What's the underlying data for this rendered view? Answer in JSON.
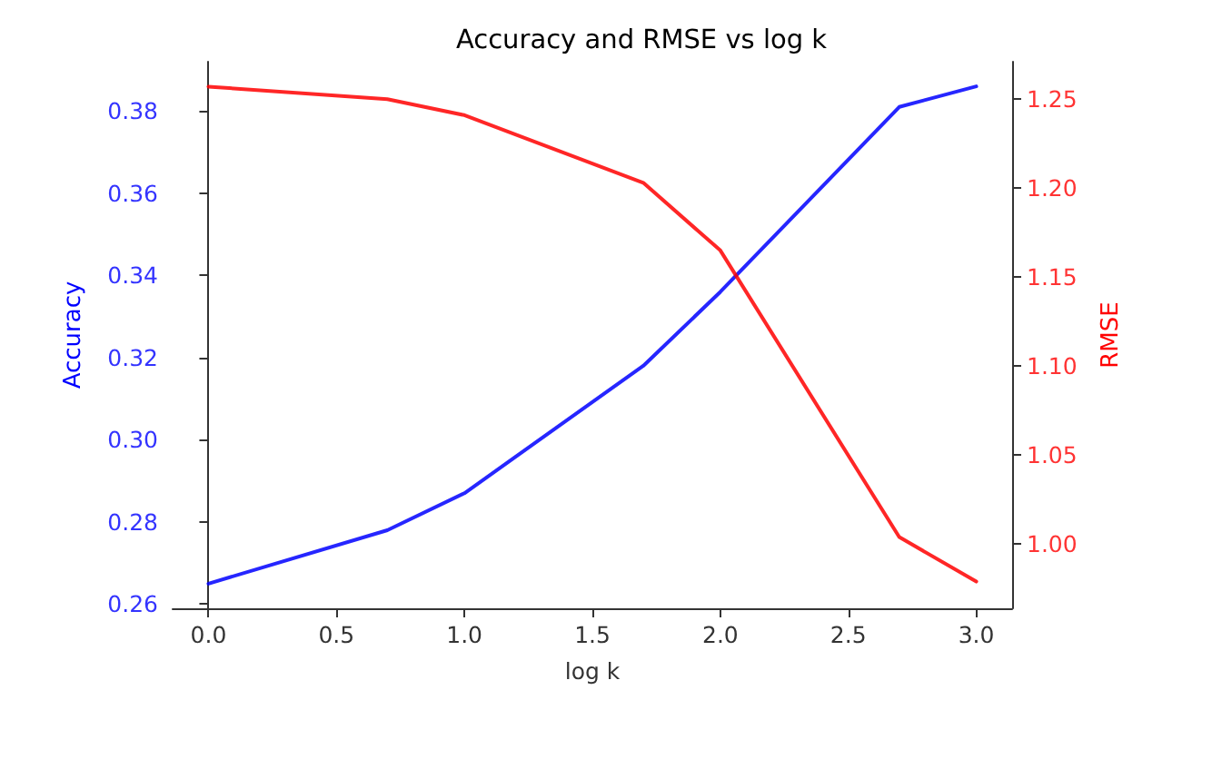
{
  "chart_data": {
    "type": "line",
    "title": "Accuracy and RMSE vs log k",
    "xlabel": "log k",
    "ylabel": "Accuracy",
    "y2label": "RMSE",
    "x": [
      0,
      0.699,
      1,
      1.699,
      2,
      2.699,
      3
    ],
    "series": [
      {
        "axis": "y",
        "color": "#0000ff",
        "values": [
          0.265,
          0.278,
          0.287,
          0.318,
          0.336,
          0.381,
          0.386
        ]
      },
      {
        "axis": "y2",
        "color": "#ff0000",
        "values": [
          1.257,
          1.25,
          1.241,
          1.203,
          1.165,
          1.004,
          0.979
        ]
      }
    ],
    "xlim": [
      -0.14,
      3.14
    ],
    "xticks": [
      {
        "value": 0,
        "label": "0.0"
      },
      0.5,
      {
        "value": 1,
        "label": "1.0"
      },
      1.5,
      {
        "value": 2,
        "label": "2.0"
      },
      2.5,
      {
        "value": 3,
        "label": "3.0"
      }
    ],
    "ylim": [
      0.259,
      0.392
    ],
    "yticks": [
      0.26,
      0.28,
      {
        "value": 0.3,
        "label": "0.30"
      },
      0.32,
      0.34,
      0.36,
      0.38
    ],
    "y2lim": [
      0.964,
      1.271
    ],
    "y2ticks": [
      {
        "value": 1,
        "label": "1.00"
      },
      1.05,
      {
        "value": 1.1,
        "label": "1.10"
      },
      1.15,
      {
        "value": 1.2,
        "label": "1.20"
      },
      1.25
    ],
    "grid": false,
    "marker": "none",
    "line_style": "solid"
  }
}
